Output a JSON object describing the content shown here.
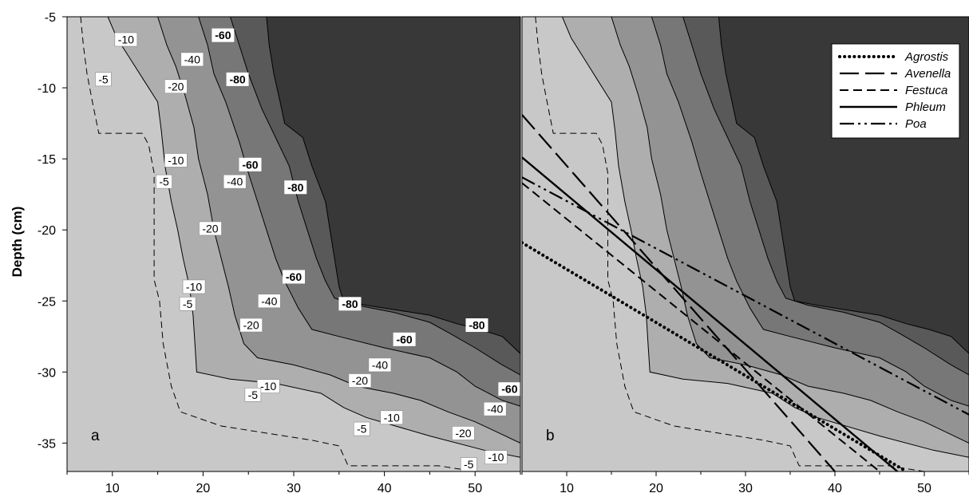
{
  "chart_data": {
    "type": "contour",
    "ylabel": "Depth (cm)",
    "xlim": [
      5,
      55
    ],
    "ylim": [
      -37,
      -5
    ],
    "x_ticks": [
      "10",
      "20",
      "30",
      "40",
      "50"
    ],
    "y_ticks": [
      "-5",
      "-10",
      "-15",
      "-20",
      "-25",
      "-30",
      "-35"
    ],
    "contour_levels": [
      -5,
      -10,
      -20,
      -40,
      -60,
      -80
    ],
    "colors": {
      "background": "#c8c8c8",
      "band_10_20": "#aeaeae",
      "band_20_40": "#939393",
      "band_40_60": "#777777",
      "band_60_80": "#595959",
      "band_below_80": "#383838"
    },
    "contours": {
      "c5": [
        [
          6.5,
          -5
        ],
        [
          6.8,
          -7
        ],
        [
          7.2,
          -9
        ],
        [
          7.8,
          -11
        ],
        [
          8.5,
          -13.2
        ],
        [
          13.3,
          -13.2
        ],
        [
          14,
          -14
        ],
        [
          14.6,
          -16
        ],
        [
          14.6,
          -23.5
        ],
        [
          15.2,
          -25
        ],
        [
          15.6,
          -28
        ],
        [
          16.5,
          -31
        ],
        [
          17.5,
          -32.8
        ],
        [
          22,
          -33.8
        ],
        [
          32,
          -34.8
        ],
        [
          35,
          -35.2
        ],
        [
          36,
          -36.6
        ],
        [
          46,
          -36.6
        ],
        [
          50,
          -37
        ]
      ],
      "c10": [
        [
          9.5,
          -5
        ],
        [
          10.5,
          -6.5
        ],
        [
          12,
          -8
        ],
        [
          13.5,
          -9.5
        ],
        [
          15,
          -11
        ],
        [
          15.4,
          -13
        ],
        [
          15.8,
          -15.5
        ],
        [
          16.5,
          -18
        ],
        [
          17.2,
          -20
        ],
        [
          17.8,
          -22
        ],
        [
          18.5,
          -24
        ],
        [
          18.9,
          -26
        ],
        [
          19.1,
          -28
        ],
        [
          19.3,
          -30
        ],
        [
          23,
          -30.5
        ],
        [
          28,
          -30.8
        ],
        [
          33,
          -31.5
        ],
        [
          35.5,
          -32.5
        ],
        [
          38,
          -33.2
        ],
        [
          45,
          -34.5
        ],
        [
          51,
          -35.5
        ],
        [
          55,
          -36
        ]
      ],
      "c20": [
        [
          15,
          -5
        ],
        [
          16,
          -7
        ],
        [
          17,
          -8.5
        ],
        [
          18,
          -10.5
        ],
        [
          19,
          -12.8
        ],
        [
          19.5,
          -15
        ],
        [
          20.5,
          -17.5
        ],
        [
          21.2,
          -20
        ],
        [
          22,
          -22
        ],
        [
          22.8,
          -24
        ],
        [
          23.5,
          -26
        ],
        [
          24.5,
          -28
        ],
        [
          26,
          -29
        ],
        [
          30,
          -29.5
        ],
        [
          34,
          -30.2
        ],
        [
          37,
          -31
        ],
        [
          41,
          -31.5
        ],
        [
          44,
          -32
        ],
        [
          47,
          -32.8
        ],
        [
          50,
          -33.5
        ],
        [
          53,
          -34.4
        ],
        [
          55,
          -35
        ]
      ],
      "c40": [
        [
          19.5,
          -5
        ],
        [
          20.5,
          -7
        ],
        [
          21.2,
          -9
        ],
        [
          22.5,
          -11
        ],
        [
          24,
          -13.8
        ],
        [
          25,
          -16
        ],
        [
          26,
          -18
        ],
        [
          27,
          -20
        ],
        [
          28,
          -22
        ],
        [
          29,
          -23.6
        ],
        [
          30.5,
          -25.5
        ],
        [
          32,
          -27
        ],
        [
          35,
          -27.5
        ],
        [
          40,
          -28.3
        ],
        [
          45,
          -29
        ],
        [
          48,
          -30
        ],
        [
          50,
          -31
        ],
        [
          53,
          -32
        ],
        [
          55,
          -32.4
        ]
      ],
      "c60": [
        [
          23,
          -5
        ],
        [
          24,
          -7
        ],
        [
          25,
          -9
        ],
        [
          26.5,
          -11.5
        ],
        [
          28,
          -13.5
        ],
        [
          29.5,
          -15.5
        ],
        [
          30.5,
          -18
        ],
        [
          31.5,
          -20
        ],
        [
          32.5,
          -22
        ],
        [
          33.5,
          -23.6
        ],
        [
          34.5,
          -24.8
        ],
        [
          37,
          -25.3
        ],
        [
          41,
          -25.8
        ],
        [
          45,
          -26.5
        ],
        [
          47,
          -27.2
        ],
        [
          50,
          -28.3
        ],
        [
          53,
          -29.5
        ],
        [
          55,
          -30.2
        ]
      ],
      "c80": [
        [
          27,
          -5
        ],
        [
          27.3,
          -7
        ],
        [
          27.8,
          -9
        ],
        [
          28.5,
          -11
        ],
        [
          29,
          -12.5
        ],
        [
          31,
          -13.5
        ],
        [
          32,
          -15.5
        ],
        [
          33.5,
          -18
        ],
        [
          34,
          -20
        ],
        [
          34.5,
          -22
        ],
        [
          35,
          -24
        ],
        [
          35.5,
          -25
        ],
        [
          38,
          -25.3
        ],
        [
          42,
          -25.7
        ],
        [
          45,
          -26
        ],
        [
          48,
          -26.6
        ],
        [
          50.5,
          -27
        ],
        [
          53,
          -27.5
        ],
        [
          55,
          -28.7
        ]
      ]
    },
    "labels_a": [
      {
        "text": "-10",
        "x": 11.5,
        "y": -6.6
      },
      {
        "text": "-60",
        "x": 22.2,
        "y": -6.3
      },
      {
        "text": "-40",
        "x": 18.8,
        "y": -8
      },
      {
        "text": "-5",
        "x": 9,
        "y": -9.4
      },
      {
        "text": "-80",
        "x": 23.8,
        "y": -9.4
      },
      {
        "text": "-20",
        "x": 17,
        "y": -9.9
      },
      {
        "text": "-10",
        "x": 17,
        "y": -15.1
      },
      {
        "text": "-60",
        "x": 25.2,
        "y": -15.4
      },
      {
        "text": "-5",
        "x": 15.7,
        "y": -16.6
      },
      {
        "text": "-40",
        "x": 23.5,
        "y": -16.6
      },
      {
        "text": "-80",
        "x": 30.2,
        "y": -17
      },
      {
        "text": "-20",
        "x": 20.8,
        "y": -19.9
      },
      {
        "text": "-60",
        "x": 30,
        "y": -23.3
      },
      {
        "text": "-10",
        "x": 19,
        "y": -24
      },
      {
        "text": "-40",
        "x": 27.3,
        "y": -25
      },
      {
        "text": "-5",
        "x": 18.3,
        "y": -25.2
      },
      {
        "text": "-80",
        "x": 36.2,
        "y": -25.2
      },
      {
        "text": "-20",
        "x": 25.3,
        "y": -26.7
      },
      {
        "text": "-80",
        "x": 50.2,
        "y": -26.7
      },
      {
        "text": "-60",
        "x": 42.2,
        "y": -27.7
      },
      {
        "text": "-40",
        "x": 39.5,
        "y": -29.5
      },
      {
        "text": "-20",
        "x": 37.3,
        "y": -30.6
      },
      {
        "text": "-10",
        "x": 27.2,
        "y": -31
      },
      {
        "text": "-5",
        "x": 25.5,
        "y": -31.6
      },
      {
        "text": "-60",
        "x": 53.8,
        "y": -31.2
      },
      {
        "text": "-40",
        "x": 52.2,
        "y": -32.6
      },
      {
        "text": "-10",
        "x": 40.8,
        "y": -33.2
      },
      {
        "text": "-5",
        "x": 37.5,
        "y": -34
      },
      {
        "text": "-20",
        "x": 48.7,
        "y": -34.3
      },
      {
        "text": "-10",
        "x": 52.3,
        "y": -36
      },
      {
        "text": "-5",
        "x": 49.3,
        "y": -36.5
      }
    ],
    "series": [
      {
        "name": "Agrostis",
        "dash": "dotted",
        "points": [
          [
            5,
            -20.9
          ],
          [
            48,
            -37
          ]
        ]
      },
      {
        "name": "Avenella",
        "dash": "longdash",
        "points": [
          [
            5,
            -11.9
          ],
          [
            40,
            -37
          ]
        ]
      },
      {
        "name": "Festuca",
        "dash": "dash",
        "points": [
          [
            5,
            -16.7
          ],
          [
            45,
            -37
          ]
        ]
      },
      {
        "name": "Phleum",
        "dash": "solid",
        "points": [
          [
            5,
            -14.9
          ],
          [
            47,
            -37
          ]
        ]
      },
      {
        "name": "Poa",
        "dash": "dashdotdot",
        "points": [
          [
            5,
            -16.3
          ],
          [
            55,
            -33
          ]
        ]
      }
    ],
    "panels": [
      {
        "id": "a",
        "label": "a",
        "show_labels": true,
        "show_lines": false
      },
      {
        "id": "b",
        "label": "b",
        "show_labels": false,
        "show_lines": true
      }
    ]
  }
}
